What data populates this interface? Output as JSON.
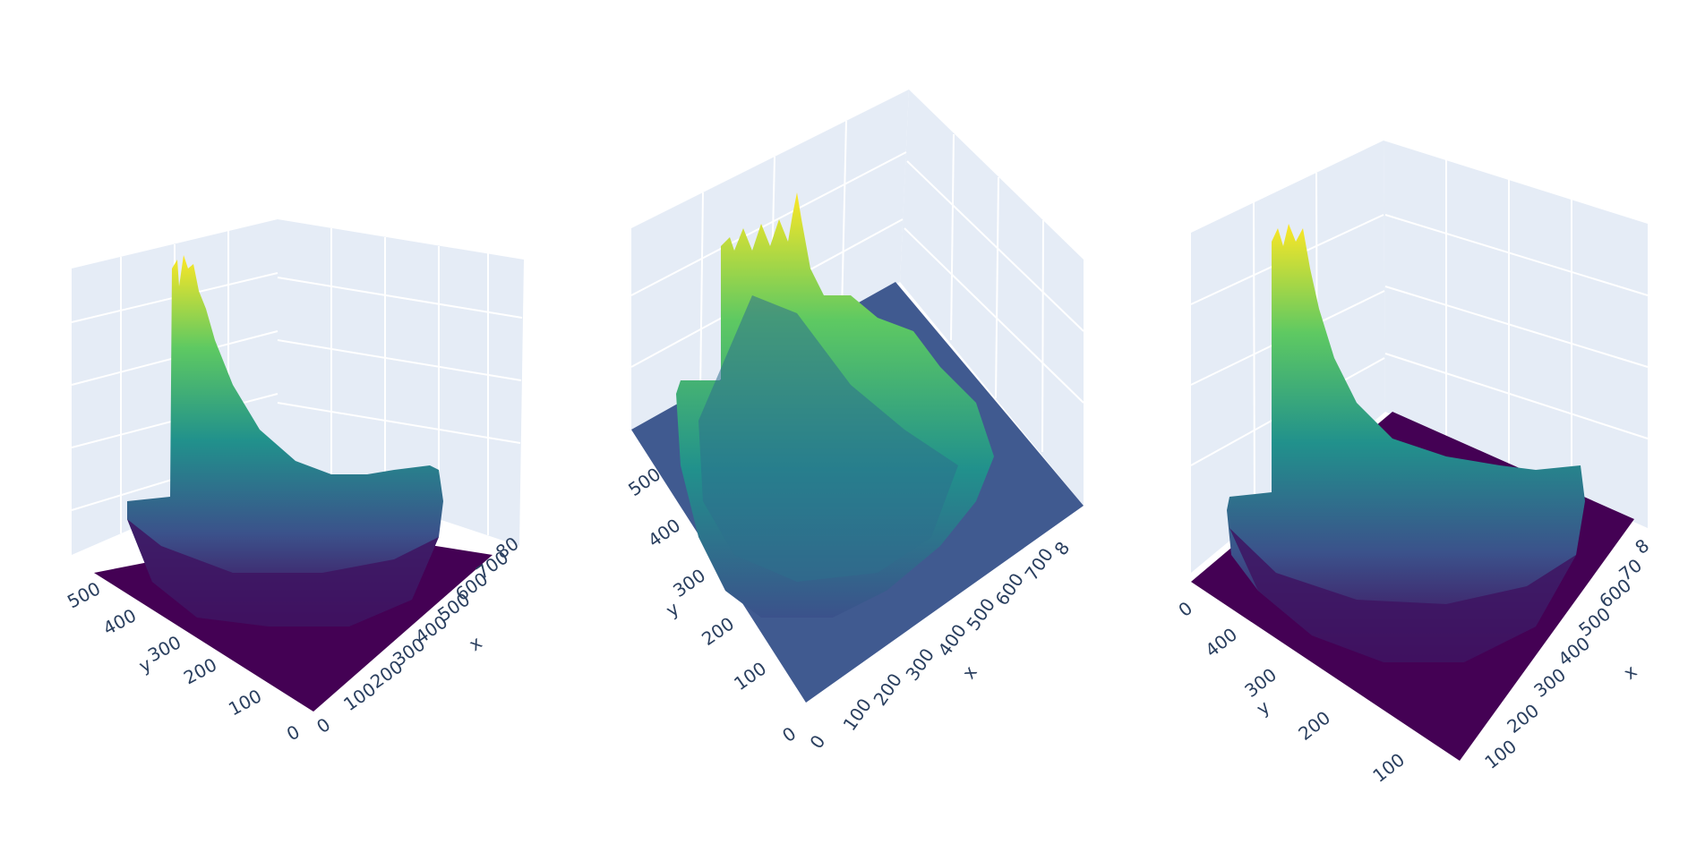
{
  "chart_data": [
    {
      "type": "surface3d",
      "colorscale": "viridis",
      "colors": {
        "low": "#440154",
        "mid": "#21918c",
        "high": "#fde725",
        "pane": "#e5ecf6",
        "grid": "#ffffff",
        "floor": "#440154"
      },
      "x_axis": {
        "title": "x",
        "ticks": [
          "0",
          "100",
          "200",
          "300",
          "400",
          "500",
          "600",
          "700",
          "80"
        ]
      },
      "y_axis": {
        "title": "y",
        "ticks": [
          "0",
          "100",
          "200",
          "300",
          "400",
          "500"
        ]
      }
    },
    {
      "type": "surface3d",
      "colorscale": "viridis",
      "colors": {
        "low": "#3b528b",
        "mid": "#21918c",
        "high": "#fde725",
        "pane": "#e5ecf6",
        "grid": "#ffffff",
        "floor": "#405a90"
      },
      "x_axis": {
        "title": "x",
        "ticks": [
          "0",
          "100",
          "200",
          "300",
          "400",
          "500",
          "600",
          "700",
          "8"
        ]
      },
      "y_axis": {
        "title": "y",
        "ticks": [
          "0",
          "100",
          "200",
          "300",
          "400",
          "500"
        ]
      }
    },
    {
      "type": "surface3d",
      "colorscale": "viridis",
      "colors": {
        "low": "#440154",
        "mid": "#21918c",
        "high": "#fde725",
        "pane": "#e5ecf6",
        "grid": "#ffffff",
        "floor": "#440154"
      },
      "x_axis": {
        "title": "x",
        "ticks": [
          "100",
          "200",
          "300",
          "400",
          "500",
          "600",
          "70",
          "8"
        ]
      },
      "y_axis": {
        "title": "y",
        "ticks": [
          "100",
          "200",
          "300",
          "400",
          "0"
        ]
      }
    }
  ]
}
